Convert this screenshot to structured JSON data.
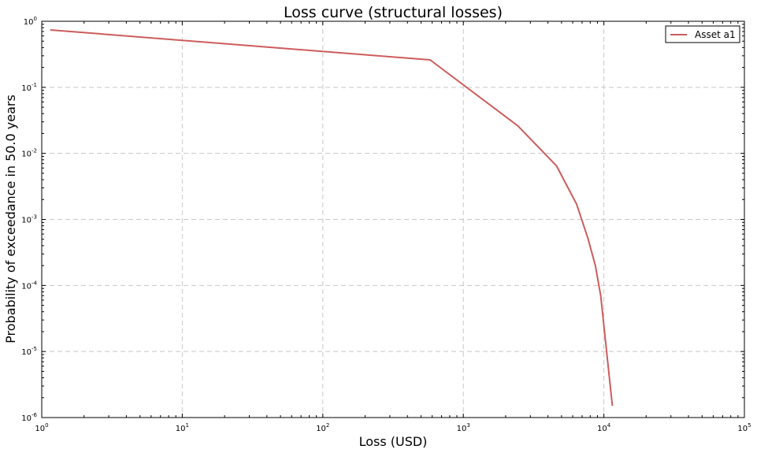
{
  "chart_data": {
    "type": "line",
    "title": "Loss curve (structural losses)",
    "xlabel": "Loss (USD)",
    "ylabel": "Probability of exceedance in 50.0 years",
    "x_scale": "log",
    "y_scale": "log",
    "xlim": [
      1,
      100000
    ],
    "ylim": [
      1e-06,
      1
    ],
    "grid": true,
    "legend_position": "top-right",
    "x_ticks": [
      {
        "base": "10",
        "exp": "0",
        "value": 1
      },
      {
        "base": "10",
        "exp": "1",
        "value": 10
      },
      {
        "base": "10",
        "exp": "2",
        "value": 100
      },
      {
        "base": "10",
        "exp": "3",
        "value": 1000
      },
      {
        "base": "10",
        "exp": "4",
        "value": 10000
      },
      {
        "base": "10",
        "exp": "5",
        "value": 100000
      }
    ],
    "y_ticks": [
      {
        "base": "10",
        "exp": "0",
        "value": 1
      },
      {
        "base": "10",
        "exp": "-1",
        "value": 0.1
      },
      {
        "base": "10",
        "exp": "-2",
        "value": 0.01
      },
      {
        "base": "10",
        "exp": "-3",
        "value": 0.001
      },
      {
        "base": "10",
        "exp": "-4",
        "value": 0.0001
      },
      {
        "base": "10",
        "exp": "-5",
        "value": 1e-05
      },
      {
        "base": "10",
        "exp": "-6",
        "value": 1e-06
      }
    ],
    "series": [
      {
        "name": "Asset a1",
        "color": "#cd5c5c",
        "points": [
          {
            "x": 1.15,
            "y": 0.74
          },
          {
            "x": 580,
            "y": 0.26
          },
          {
            "x": 2450,
            "y": 0.026
          },
          {
            "x": 4600,
            "y": 0.0065
          },
          {
            "x": 6400,
            "y": 0.0017
          },
          {
            "x": 7700,
            "y": 0.00052
          },
          {
            "x": 8700,
            "y": 0.0002
          },
          {
            "x": 9500,
            "y": 7e-05
          },
          {
            "x": 11500,
            "y": 1.5e-06
          }
        ]
      }
    ]
  }
}
